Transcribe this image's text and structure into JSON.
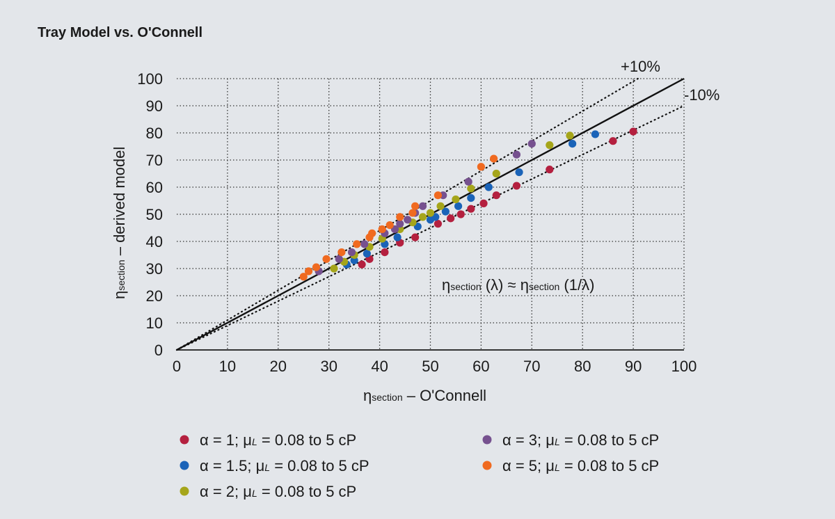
{
  "chart_data": {
    "type": "scatter",
    "title": "Tray Model vs. O'Connell",
    "xlabel": {
      "main": "η",
      "sub": "section",
      "rest": " – O'Connell"
    },
    "ylabel": {
      "main": "η",
      "sub": "section",
      "rest": " – derived model"
    },
    "xlim": [
      0,
      100
    ],
    "ylim": [
      0,
      100
    ],
    "xticks": [
      0,
      10,
      20,
      30,
      40,
      50,
      60,
      70,
      80,
      90,
      100
    ],
    "yticks": [
      0,
      10,
      20,
      30,
      40,
      50,
      60,
      70,
      80,
      90,
      100
    ],
    "grid": true,
    "annotations": {
      "plus10": "+10%",
      "minus10": "-10%",
      "equation": {
        "eta": "η",
        "sub": "section",
        "left_arg": " (λ) ≈ ",
        "right_arg": " (1/λ)"
      }
    },
    "reference_lines": [
      {
        "name": "parity",
        "slope": 1.0,
        "style": "solid"
      },
      {
        "name": "+10%",
        "slope": 1.1,
        "style": "dotted"
      },
      {
        "name": "-10%",
        "slope": 0.9,
        "style": "dotted"
      }
    ],
    "series": [
      {
        "name": "α = 1; μL = 0.08 to 5 cP",
        "legend": {
          "alpha": "α",
          "alpha_val": " = 1; ",
          "mu": "μ",
          "mu_sub": "L",
          "range": " = 0.08 to 5 cP"
        },
        "color": "#b4203f",
        "points": [
          [
            36.5,
            31.5
          ],
          [
            38,
            33.5
          ],
          [
            41,
            36
          ],
          [
            44,
            39.5
          ],
          [
            47,
            41.5
          ],
          [
            51.5,
            46.5
          ],
          [
            54,
            48.5
          ],
          [
            56,
            50
          ],
          [
            58,
            52
          ],
          [
            60.5,
            54
          ],
          [
            63,
            57
          ],
          [
            67,
            60.5
          ],
          [
            73.5,
            66.5
          ],
          [
            86,
            77
          ],
          [
            90,
            80.5
          ]
        ]
      },
      {
        "name": "α = 1.5; μL = 0.08 to 5 cP",
        "legend": {
          "alpha": "α",
          "alpha_val": " = 1.5; ",
          "mu": "μ",
          "mu_sub": "L",
          "range": " = 0.08 to 5 cP"
        },
        "color": "#1a63b8",
        "points": [
          [
            33.5,
            31.5
          ],
          [
            35,
            33
          ],
          [
            37.5,
            35.5
          ],
          [
            41,
            39
          ],
          [
            43.5,
            41.5
          ],
          [
            47.5,
            45.5
          ],
          [
            50,
            48
          ],
          [
            51,
            49
          ],
          [
            53,
            51
          ],
          [
            55.5,
            53
          ],
          [
            58,
            56
          ],
          [
            61.5,
            60
          ],
          [
            67.5,
            65.5
          ],
          [
            78,
            76
          ],
          [
            82.5,
            79.5
          ]
        ]
      },
      {
        "name": "α = 2; μL = 0.08 to 5 cP",
        "legend": {
          "alpha": "α",
          "alpha_val": " = 2; ",
          "mu": "μ",
          "mu_sub": "L",
          "range": " = 0.08 to 5 cP"
        },
        "color": "#a5a51a",
        "points": [
          [
            31,
            30
          ],
          [
            33,
            32.5
          ],
          [
            35,
            35
          ],
          [
            38,
            38
          ],
          [
            40.5,
            41
          ],
          [
            44,
            44.5
          ],
          [
            46.5,
            47
          ],
          [
            48.5,
            49
          ],
          [
            50,
            50.5
          ],
          [
            52,
            53
          ],
          [
            55,
            55.5
          ],
          [
            58,
            59.5
          ],
          [
            63,
            65
          ],
          [
            73.5,
            75.5
          ],
          [
            77.5,
            79
          ]
        ]
      },
      {
        "name": "α = 3; μL = 0.08 to 5 cP",
        "legend": {
          "alpha": "α",
          "alpha_val": " = 3; ",
          "mu": "μ",
          "mu_sub": "L",
          "range": " = 0.08 to 5 cP"
        },
        "color": "#76518f",
        "points": [
          [
            28,
            29
          ],
          [
            32,
            33.5
          ],
          [
            34.5,
            36
          ],
          [
            37,
            39
          ],
          [
            41,
            43
          ],
          [
            43,
            44.5
          ],
          [
            44,
            46.5
          ],
          [
            45.5,
            48
          ],
          [
            47,
            50.5
          ],
          [
            48.5,
            53
          ],
          [
            52.5,
            57
          ],
          [
            57.5,
            62
          ],
          [
            67,
            72
          ],
          [
            70,
            76
          ]
        ]
      },
      {
        "name": "α = 5; μL = 0.08 to 5 cP",
        "legend": {
          "alpha": "α",
          "alpha_val": " = 5; ",
          "mu": "μ",
          "mu_sub": "L",
          "range": " = 0.08 to 5 cP"
        },
        "color": "#f06a20",
        "points": [
          [
            25,
            27
          ],
          [
            26,
            29
          ],
          [
            27.5,
            30.5
          ],
          [
            29.5,
            33.5
          ],
          [
            32.5,
            36
          ],
          [
            35.5,
            39
          ],
          [
            38,
            41.5
          ],
          [
            38.5,
            43
          ],
          [
            40.5,
            44.5
          ],
          [
            42,
            46
          ],
          [
            44,
            49
          ],
          [
            46.5,
            50.5
          ],
          [
            47,
            53
          ],
          [
            51.5,
            57
          ],
          [
            60,
            67.5
          ],
          [
            62.5,
            70.5
          ]
        ]
      }
    ]
  }
}
